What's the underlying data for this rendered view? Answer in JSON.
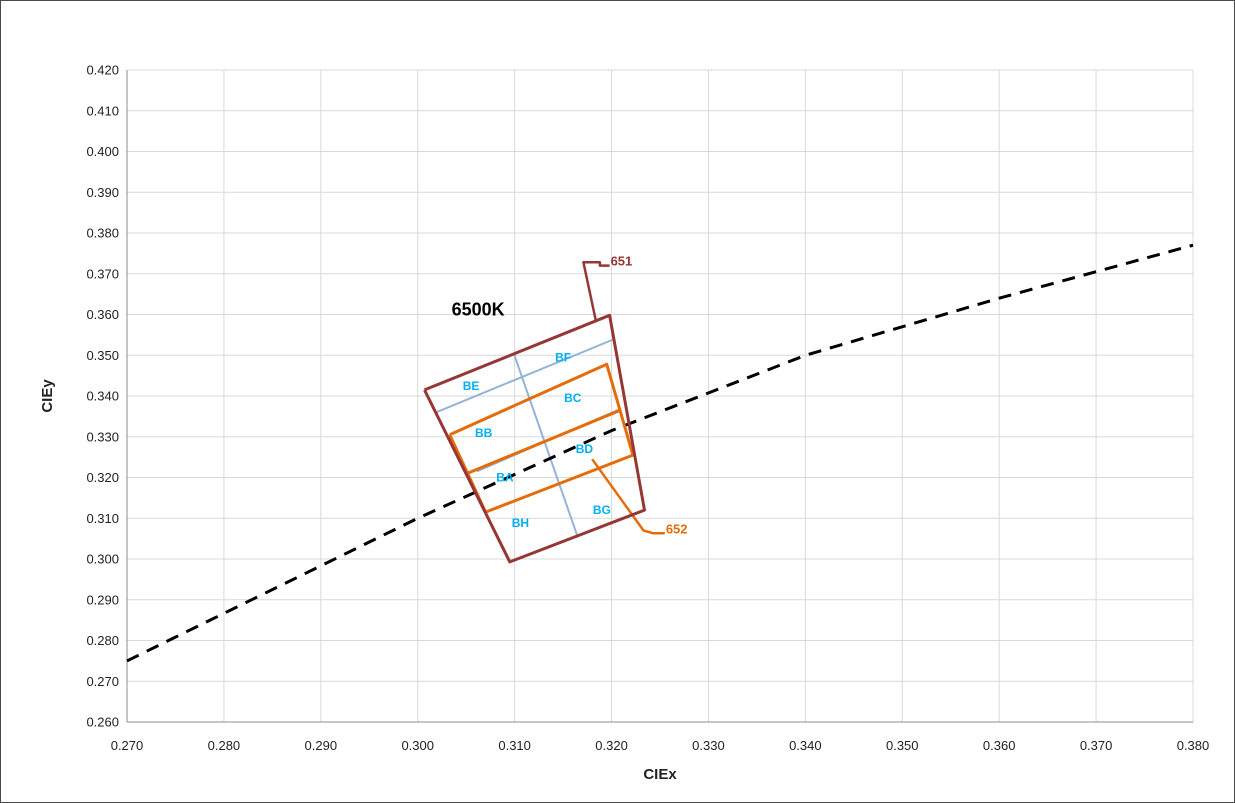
{
  "chart_data": {
    "type": "scatter",
    "title": "",
    "xlabel": "CIEx",
    "ylabel": "CIEy",
    "xlim": [
      0.27,
      0.38
    ],
    "ylim": [
      0.26,
      0.42
    ],
    "xticks": [
      "0.270",
      "0.280",
      "0.290",
      "0.300",
      "0.310",
      "0.320",
      "0.330",
      "0.340",
      "0.350",
      "0.360",
      "0.370",
      "0.380"
    ],
    "yticks": [
      "0.260",
      "0.270",
      "0.280",
      "0.290",
      "0.300",
      "0.310",
      "0.320",
      "0.330",
      "0.340",
      "0.350",
      "0.360",
      "0.370",
      "0.380",
      "0.390",
      "0.400",
      "0.410",
      "0.420"
    ],
    "grid": true,
    "colors": {
      "outer": "#953735",
      "orange": "#E46C0A",
      "blue_lines": "#95B3D7",
      "bin_text": "#00B0F0",
      "locus": "#000000",
      "grid": "#D9D9D9"
    },
    "series": [
      {
        "role": "black-body-locus",
        "style": "dashed",
        "points": [
          [
            0.27,
            0.275
          ],
          [
            0.3,
            0.31
          ],
          [
            0.32,
            0.3315
          ],
          [
            0.34,
            0.35
          ],
          [
            0.36,
            0.364
          ],
          [
            0.38,
            0.377
          ]
        ]
      },
      {
        "role": "outer-quadrangle-651",
        "points": [
          [
            0.3007,
            0.3415
          ],
          [
            0.3198,
            0.3598
          ],
          [
            0.3234,
            0.312
          ],
          [
            0.3095,
            0.2993
          ],
          [
            0.3007,
            0.3415
          ]
        ]
      },
      {
        "role": "leader-651",
        "points": [
          [
            0.3184,
            0.3583
          ],
          [
            0.3171,
            0.3728
          ],
          [
            0.3188,
            0.3728
          ],
          [
            0.3188,
            0.372
          ],
          [
            0.3198,
            0.372
          ]
        ]
      },
      {
        "role": "orange-band-upper",
        "points": [
          [
            0.3033,
            0.3305
          ],
          [
            0.3195,
            0.3478
          ],
          [
            0.3222,
            0.3255
          ],
          [
            0.307,
            0.3115
          ],
          [
            0.3033,
            0.3305
          ]
        ]
      },
      {
        "role": "orange-mid-line",
        "points": [
          [
            0.3051,
            0.321
          ],
          [
            0.321,
            0.3366
          ]
        ]
      },
      {
        "role": "leader-652",
        "points": [
          [
            0.318,
            0.3245
          ],
          [
            0.3233,
            0.307
          ],
          [
            0.3243,
            0.3063
          ],
          [
            0.3249,
            0.3063
          ],
          [
            0.3255,
            0.3063
          ]
        ]
      },
      {
        "role": "blue-grid-line-1",
        "points": [
          [
            0.3019,
            0.336
          ],
          [
            0.3203,
            0.354
          ]
        ]
      },
      {
        "role": "blue-grid-line-2",
        "points": [
          [
            0.3061,
            0.3215
          ],
          [
            0.321,
            0.3369
          ]
        ]
      },
      {
        "role": "blue-grid-line-3",
        "points": [
          [
            0.3099,
            0.3505
          ],
          [
            0.3165,
            0.3055
          ]
        ]
      }
    ],
    "bins": [
      {
        "label": "BE",
        "x": 0.3055,
        "y": 0.3415
      },
      {
        "label": "BF",
        "x": 0.315,
        "y": 0.3485
      },
      {
        "label": "BB",
        "x": 0.3068,
        "y": 0.33
      },
      {
        "label": "BC",
        "x": 0.316,
        "y": 0.3385
      },
      {
        "label": "BA",
        "x": 0.309,
        "y": 0.319
      },
      {
        "label": "BD",
        "x": 0.3172,
        "y": 0.326
      },
      {
        "label": "BH",
        "x": 0.3106,
        "y": 0.3078
      },
      {
        "label": "BG",
        "x": 0.319,
        "y": 0.311
      }
    ],
    "annotations": [
      {
        "text": "6500K",
        "x": 0.3035,
        "y": 0.3597,
        "color": "#000000",
        "size": 18
      },
      {
        "text": "651",
        "x": 0.3199,
        "y": 0.372,
        "color": "#953735",
        "size": 13
      },
      {
        "text": "652",
        "x": 0.3256,
        "y": 0.3062,
        "color": "#E46C0A",
        "size": 13
      }
    ]
  }
}
